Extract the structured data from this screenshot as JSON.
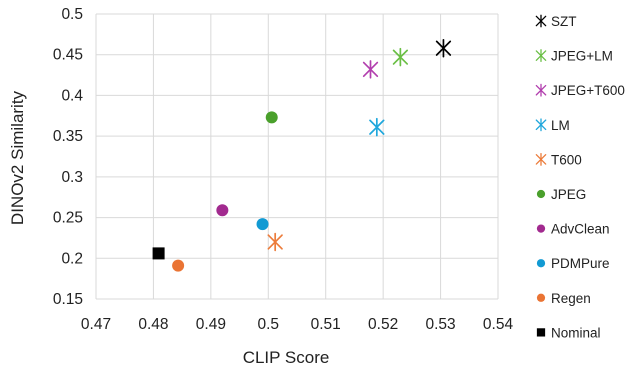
{
  "chart_data": {
    "type": "scatter",
    "title": "",
    "xlabel": "CLIP Score",
    "ylabel": "DINOv2 Similarity",
    "xlim": [
      0.47,
      0.54
    ],
    "ylim": [
      0.15,
      0.5
    ],
    "xticks": [
      "0.47",
      "0.48",
      "0.49",
      "0.5",
      "0.51",
      "0.52",
      "0.53",
      "0.54"
    ],
    "yticks": [
      "0.15",
      "0.2",
      "0.25",
      "0.3",
      "0.35",
      "0.4",
      "0.45",
      "0.5"
    ],
    "grid": true,
    "legend_position": "right",
    "series": [
      {
        "name": "SZT",
        "marker": "asterisk",
        "color": "#000000",
        "x": 0.5305,
        "y": 0.458
      },
      {
        "name": "JPEG+LM",
        "marker": "asterisk",
        "color": "#6abf45",
        "x": 0.523,
        "y": 0.447
      },
      {
        "name": "JPEG+T600",
        "marker": "asterisk",
        "color": "#b23fae",
        "x": 0.5178,
        "y": 0.432
      },
      {
        "name": "LM",
        "marker": "asterisk",
        "color": "#1fa7dc",
        "x": 0.5189,
        "y": 0.361
      },
      {
        "name": "T600",
        "marker": "asterisk",
        "color": "#ec7c3b",
        "x": 0.5012,
        "y": 0.22
      },
      {
        "name": "JPEG",
        "marker": "circle",
        "color": "#4aa02c",
        "x": 0.5006,
        "y": 0.373
      },
      {
        "name": "AdvClean",
        "marker": "circle",
        "color": "#a22a8f",
        "x": 0.492,
        "y": 0.259
      },
      {
        "name": "PDMPure",
        "marker": "circle",
        "color": "#129ad3",
        "x": 0.499,
        "y": 0.242
      },
      {
        "name": "Regen",
        "marker": "circle",
        "color": "#ea7434",
        "x": 0.4843,
        "y": 0.191
      },
      {
        "name": "Nominal",
        "marker": "square",
        "color": "#000000",
        "x": 0.4809,
        "y": 0.206
      }
    ]
  }
}
